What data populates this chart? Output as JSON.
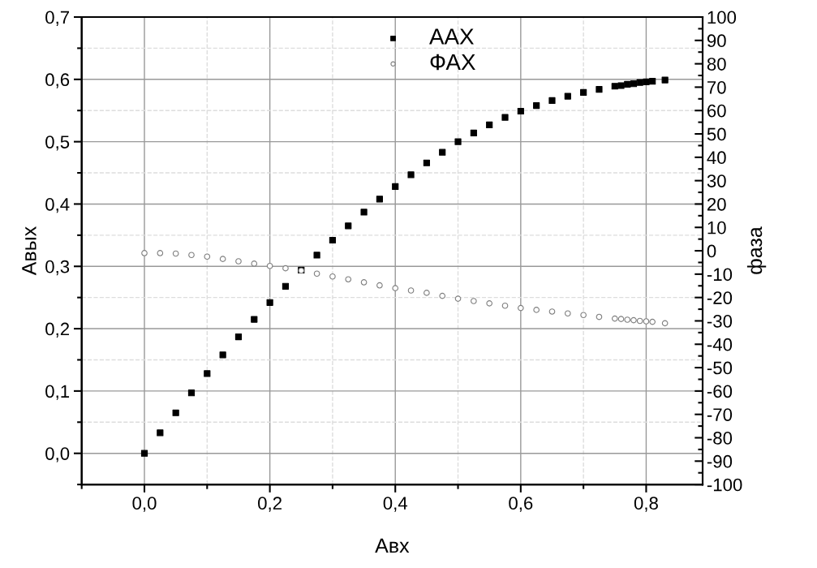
{
  "chart_data": {
    "type": "scatter",
    "xlabel": "Авх",
    "ylabel": "Авых",
    "y2label": "фаза",
    "xlim": [
      -0.1,
      0.89
    ],
    "ylim": [
      -0.05,
      0.7
    ],
    "y2lim": [
      -100,
      100
    ],
    "xticks": [
      {
        "value": -0.1,
        "label": null
      },
      {
        "value": 0,
        "label": "0,0"
      },
      {
        "value": 0.1,
        "label": null
      },
      {
        "value": 0.2,
        "label": "0,2"
      },
      {
        "value": 0.3,
        "label": null
      },
      {
        "value": 0.4,
        "label": "0,4"
      },
      {
        "value": 0.5,
        "label": null
      },
      {
        "value": 0.6,
        "label": "0,6"
      },
      {
        "value": 0.7,
        "label": null
      },
      {
        "value": 0.8,
        "label": "0,8"
      }
    ],
    "yticks": [
      {
        "value": -0.05,
        "label": null
      },
      {
        "value": 0,
        "label": "0,0"
      },
      {
        "value": 0.05,
        "label": null
      },
      {
        "value": 0.1,
        "label": "0,1"
      },
      {
        "value": 0.15,
        "label": null
      },
      {
        "value": 0.2,
        "label": "0,2"
      },
      {
        "value": 0.25,
        "label": null
      },
      {
        "value": 0.3,
        "label": "0,3"
      },
      {
        "value": 0.35,
        "label": null
      },
      {
        "value": 0.4,
        "label": "0,4"
      },
      {
        "value": 0.45,
        "label": null
      },
      {
        "value": 0.5,
        "label": "0,5"
      },
      {
        "value": 0.55,
        "label": null
      },
      {
        "value": 0.6,
        "label": "0,6"
      },
      {
        "value": 0.65,
        "label": null
      },
      {
        "value": 0.7,
        "label": "0,7"
      }
    ],
    "y2ticks": [
      -100,
      {
        "value": -95,
        "label": null
      },
      -90,
      {
        "value": -85,
        "label": null
      },
      -80,
      {
        "value": -75,
        "label": null
      },
      -70,
      {
        "value": -65,
        "label": null
      },
      -60,
      {
        "value": -55,
        "label": null
      },
      -50,
      {
        "value": -45,
        "label": null
      },
      -40,
      {
        "value": -35,
        "label": null
      },
      -30,
      {
        "value": -25,
        "label": null
      },
      -20,
      {
        "value": -15,
        "label": null
      },
      -10,
      {
        "value": -5,
        "label": null
      },
      0,
      {
        "value": 5,
        "label": null
      },
      10,
      {
        "value": 15,
        "label": null
      },
      20,
      {
        "value": 25,
        "label": null
      },
      30,
      {
        "value": 35,
        "label": null
      },
      40,
      {
        "value": 45,
        "label": null
      },
      50,
      {
        "value": 55,
        "label": null
      },
      60,
      {
        "value": 65,
        "label": null
      },
      70,
      {
        "value": 75,
        "label": null
      },
      80,
      {
        "value": 85,
        "label": null
      },
      90,
      {
        "value": 95,
        "label": null
      },
      100
    ],
    "grid": true,
    "legend": "top",
    "series": [
      {
        "name": "ААХ",
        "color": "#000000",
        "marker": "square",
        "x": [
          0,
          0.025,
          0.05,
          0.075,
          0.1,
          0.125,
          0.15,
          0.175,
          0.2,
          0.225,
          0.25,
          0.275,
          0.3,
          0.325,
          0.35,
          0.375,
          0.4,
          0.425,
          0.45,
          0.475,
          0.5,
          0.525,
          0.55,
          0.575,
          0.6,
          0.625,
          0.65,
          0.675,
          0.7,
          0.725,
          0.75,
          0.76,
          0.77,
          0.78,
          0.79,
          0.8,
          0.81,
          0.83
        ],
        "values": [
          0,
          0.033,
          0.065,
          0.097,
          0.128,
          0.158,
          0.187,
          0.215,
          0.242,
          0.268,
          0.294,
          0.318,
          0.342,
          0.365,
          0.387,
          0.408,
          0.428,
          0.447,
          0.466,
          0.483,
          0.5,
          0.514,
          0.527,
          0.539,
          0.549,
          0.558,
          0.566,
          0.573,
          0.579,
          0.584,
          0.589,
          0.59,
          0.592,
          0.593,
          0.595,
          0.596,
          0.597,
          0.599
        ]
      },
      {
        "name": "ФАХ",
        "color": "#7f7f7f",
        "marker": "circle",
        "axis": "y2",
        "x": [
          0,
          0.025,
          0.05,
          0.075,
          0.1,
          0.125,
          0.15,
          0.175,
          0.2,
          0.225,
          0.25,
          0.275,
          0.3,
          0.325,
          0.35,
          0.375,
          0.4,
          0.425,
          0.45,
          0.475,
          0.5,
          0.525,
          0.55,
          0.575,
          0.6,
          0.625,
          0.65,
          0.675,
          0.7,
          0.725,
          0.75,
          0.76,
          0.77,
          0.78,
          0.79,
          0.8,
          0.81,
          0.83
        ],
        "values": [
          -1,
          -1,
          -1.2,
          -1.8,
          -2.5,
          -3.5,
          -4.5,
          -5.5,
          -6.5,
          -7.5,
          -8.5,
          -9.8,
          -11,
          -12.2,
          -13.5,
          -14.8,
          -16,
          -17,
          -18,
          -19.3,
          -20.5,
          -21.5,
          -22.5,
          -23.5,
          -24.5,
          -25.3,
          -26,
          -26.8,
          -27.5,
          -28.3,
          -29,
          -29.2,
          -29.5,
          -29.7,
          -30,
          -30.2,
          -30.4,
          -31
        ]
      }
    ]
  }
}
